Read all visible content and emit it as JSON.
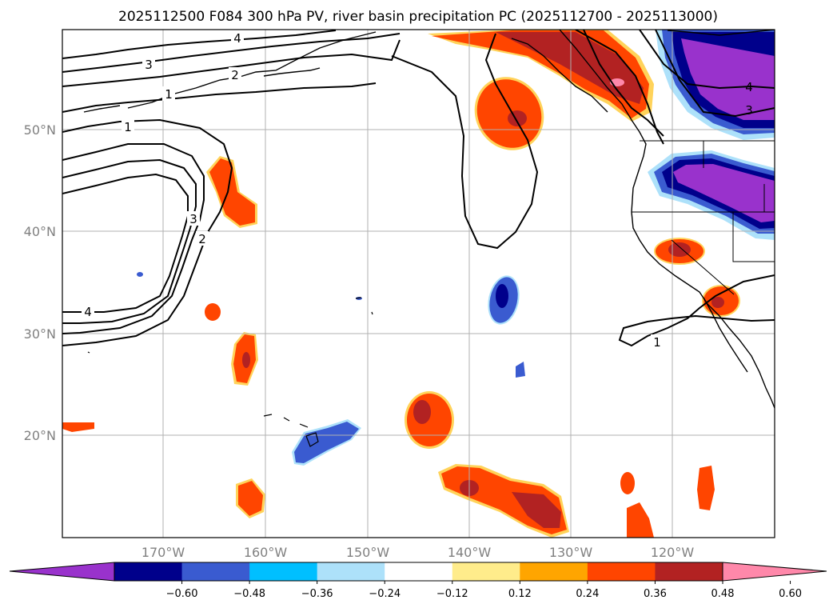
{
  "title": "2025112500 F084 300 hPa PV, river basin precipitation PC (2025112700 - 2025113000)",
  "lat_labels": [
    "50°N",
    "40°N",
    "30°N",
    "20°N"
  ],
  "lon_labels": [
    "170°W",
    "160°W",
    "150°W",
    "140°W",
    "130°W",
    "120°W"
  ],
  "colorbar": {
    "colors": [
      "#9932CC",
      "#00008B",
      "#3A5BD0",
      "#00BFFF",
      "#ADE1FA",
      "#FFFFFF",
      "#FFEC8B",
      "#FFA500",
      "#FF4500",
      "#B22222",
      "#FF88AA"
    ],
    "ticks": [
      "−0.60",
      "−0.48",
      "−0.36",
      "−0.24",
      "−0.12",
      "0.12",
      "0.24",
      "0.36",
      "0.48",
      "0.60"
    ]
  },
  "pv_contour_labels": [
    "4",
    "3",
    "2",
    "1",
    "1",
    "3",
    "2",
    "4",
    "4",
    "3",
    "1"
  ],
  "colors": {
    "gridline": "#b0b0b0",
    "contour": "#000000",
    "coast": "#000000"
  }
}
